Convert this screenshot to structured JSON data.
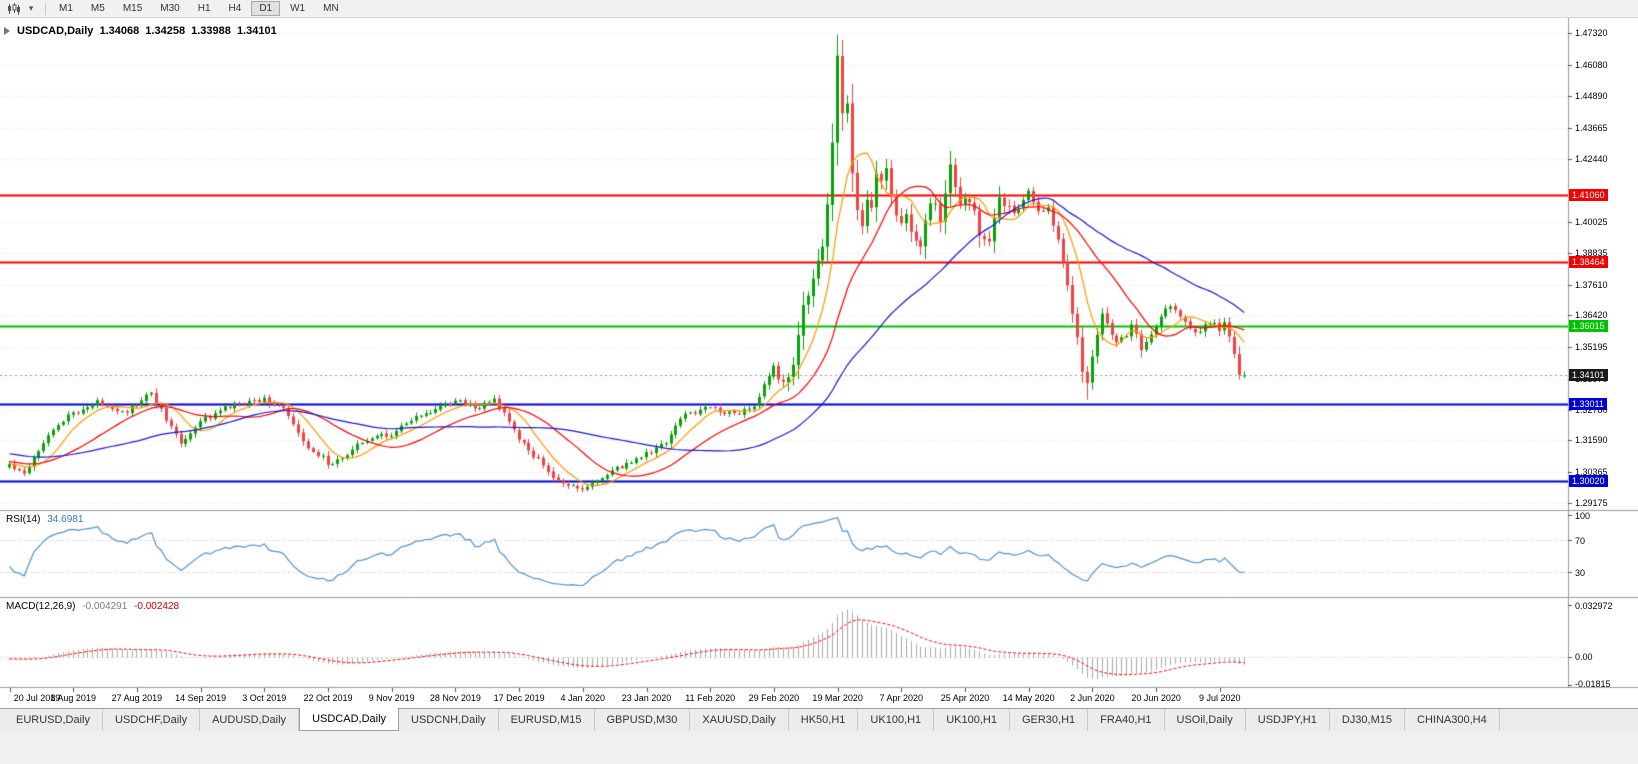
{
  "toolbar": {
    "icons": [
      "chart-type-candlestick-icon",
      "timeframe-dropdown-icon",
      "one-click-trading-icon"
    ],
    "dropdown_glyph": "▾",
    "timeframes": [
      {
        "label": "M1",
        "active": false
      },
      {
        "label": "M5",
        "active": false
      },
      {
        "label": "M15",
        "active": false
      },
      {
        "label": "M30",
        "active": false
      },
      {
        "label": "H1",
        "active": false
      },
      {
        "label": "H4",
        "active": false
      },
      {
        "label": "D1",
        "active": true
      },
      {
        "label": "W1",
        "active": false
      },
      {
        "label": "MN",
        "active": false
      }
    ]
  },
  "chart": {
    "symbol_period": "USDCAD,Daily",
    "open": "1.34068",
    "high": "1.34258",
    "low": "1.33988",
    "close": "1.34101"
  },
  "rsi_panel": {
    "name": "RSI(14)",
    "value": "34.6981",
    "axis_labels": [
      "100",
      "70",
      "30"
    ]
  },
  "macd_panel": {
    "name": "MACD(12,26,9)",
    "macd_value": "-0.004291",
    "signal_value": "-0.002428",
    "axis_labels": [
      "0.032972",
      "0.00",
      "-0.01815"
    ]
  },
  "price_axis": {
    "ticks": [
      "1.47320",
      "1.46080",
      "1.44890",
      "1.43665",
      "1.42440",
      "1.40025",
      "1.38835",
      "1.37610",
      "1.36420",
      "1.35195",
      "1.33970",
      "1.32780",
      "1.31590",
      "1.30365",
      "1.29175"
    ],
    "level_labels": [
      {
        "text": "1.41060",
        "bg": "#f50000"
      },
      {
        "text": "1.38464",
        "bg": "#f50000"
      },
      {
        "text": "1.36015",
        "bg": "#00c300"
      },
      {
        "text": "1.34101",
        "bg": "#1a1a1a"
      },
      {
        "text": "1.33011",
        "bg": "#0000d2"
      },
      {
        "text": "1.30020",
        "bg": "#0000d2"
      }
    ]
  },
  "date_axis": {
    "labels": [
      {
        "text": "20 Jul 2019",
        "bar": 0
      },
      {
        "text": "8 Aug 2019",
        "bar": 13
      },
      {
        "text": "27 Aug 2019",
        "bar": 26
      },
      {
        "text": "14 Sep 2019",
        "bar": 39
      },
      {
        "text": "3 Oct 2019",
        "bar": 52
      },
      {
        "text": "22 Oct 2019",
        "bar": 65
      },
      {
        "text": "9 Nov 2019",
        "bar": 78
      },
      {
        "text": "28 Nov 2019",
        "bar": 91
      },
      {
        "text": "17 Dec 2019",
        "bar": 104
      },
      {
        "text": "4 Jan 2020",
        "bar": 117
      },
      {
        "text": "23 Jan 2020",
        "bar": 130
      },
      {
        "text": "11 Feb 2020",
        "bar": 143
      },
      {
        "text": "29 Feb 2020",
        "bar": 156
      },
      {
        "text": "19 Mar 2020",
        "bar": 169
      },
      {
        "text": "7 Apr 2020",
        "bar": 182
      },
      {
        "text": "25 Apr 2020",
        "bar": 195
      },
      {
        "text": "14 May 2020",
        "bar": 208
      },
      {
        "text": "2 Jun 2020",
        "bar": 221
      },
      {
        "text": "20 Jun 2020",
        "bar": 234
      },
      {
        "text": "9 Jul 2020",
        "bar": 247
      }
    ]
  },
  "tabs": [
    {
      "label": "EURUSD,Daily",
      "active": false
    },
    {
      "label": "USDCHF,Daily",
      "active": false
    },
    {
      "label": "AUDUSD,Daily",
      "active": false
    },
    {
      "label": "USDCAD,Daily",
      "active": true
    },
    {
      "label": "USDCNH,Daily",
      "active": false
    },
    {
      "label": "EURUSD,M15",
      "active": false
    },
    {
      "label": "GBPUSD,M30",
      "active": false
    },
    {
      "label": "XAUUSD,Daily",
      "active": false
    },
    {
      "label": "HK50,H1",
      "active": false
    },
    {
      "label": "UK100,H1",
      "active": false
    },
    {
      "label": "UK100,H1",
      "active": false
    },
    {
      "label": "GER30,H1",
      "active": false
    },
    {
      "label": "FRA40,H1",
      "active": false
    },
    {
      "label": "USOil,Daily",
      "active": false
    },
    {
      "label": "USDJPY,H1",
      "active": false
    },
    {
      "label": "DJ30,M15",
      "active": false
    },
    {
      "label": "CHINA300,H4",
      "active": false
    }
  ],
  "chart_data": {
    "type": "candlestick",
    "symbol": "USDCAD",
    "period": "Daily",
    "ohlc_current": {
      "open": 1.34068,
      "high": 1.34258,
      "low": 1.33988,
      "close": 1.34101
    },
    "ylim": [
      1.2902,
      1.4763
    ],
    "bars_visible": 253,
    "candle_colors": {
      "up": "#0aa00a",
      "down": "#f04343"
    },
    "horizontal_lines": [
      {
        "price": 1.4106,
        "color": "#f50000",
        "width": 2
      },
      {
        "price": 1.38464,
        "color": "#f50000",
        "width": 2
      },
      {
        "price": 1.36015,
        "color": "#00c300",
        "width": 2
      },
      {
        "price": 1.33011,
        "color": "#0000d2",
        "width": 2
      },
      {
        "price": 1.3002,
        "color": "#0000d2",
        "width": 2
      }
    ],
    "current_price_line": 1.34101,
    "moving_averages": [
      {
        "period": 8,
        "method": "sma",
        "color": "#ff9900"
      },
      {
        "period": 20,
        "method": "sma",
        "color": "#ff0000"
      },
      {
        "period": 45,
        "method": "sma",
        "color": "#1a1acd"
      }
    ],
    "close_keypoints": [
      [
        0,
        1.3065
      ],
      [
        3,
        1.3035
      ],
      [
        8,
        1.3185
      ],
      [
        13,
        1.3265
      ],
      [
        18,
        1.3305
      ],
      [
        24,
        1.327
      ],
      [
        29,
        1.334
      ],
      [
        33,
        1.321
      ],
      [
        35,
        1.315
      ],
      [
        40,
        1.3245
      ],
      [
        45,
        1.329
      ],
      [
        52,
        1.332
      ],
      [
        56,
        1.328
      ],
      [
        60,
        1.315
      ],
      [
        66,
        1.306
      ],
      [
        72,
        1.316
      ],
      [
        78,
        1.3185
      ],
      [
        84,
        1.3255
      ],
      [
        91,
        1.331
      ],
      [
        96,
        1.3285
      ],
      [
        99,
        1.332
      ],
      [
        104,
        1.3165
      ],
      [
        108,
        1.308
      ],
      [
        112,
        1.3
      ],
      [
        117,
        1.2965
      ],
      [
        120,
        1.3005
      ],
      [
        126,
        1.307
      ],
      [
        130,
        1.3105
      ],
      [
        134,
        1.315
      ],
      [
        137,
        1.325
      ],
      [
        143,
        1.329
      ],
      [
        148,
        1.326
      ],
      [
        152,
        1.3295
      ],
      [
        156,
        1.344
      ],
      [
        158,
        1.337
      ],
      [
        160,
        1.343
      ],
      [
        162,
        1.369
      ],
      [
        164,
        1.3765
      ],
      [
        166,
        1.3925
      ],
      [
        167,
        1.406
      ],
      [
        168,
        1.429
      ],
      [
        169,
        1.464
      ],
      [
        170,
        1.4435
      ],
      [
        171,
        1.4455
      ],
      [
        172,
        1.4185
      ],
      [
        173,
        1.406
      ],
      [
        174,
        1.3985
      ],
      [
        175,
        1.409
      ],
      [
        176,
        1.406
      ],
      [
        177,
        1.421
      ],
      [
        178,
        1.4145
      ],
      [
        179,
        1.42
      ],
      [
        181,
        1.4015
      ],
      [
        183,
        1.402
      ],
      [
        186,
        1.3885
      ],
      [
        188,
        1.409
      ],
      [
        190,
        1.4015
      ],
      [
        192,
        1.422
      ],
      [
        194,
        1.4065
      ],
      [
        196,
        1.409
      ],
      [
        198,
        1.3965
      ],
      [
        200,
        1.3945
      ],
      [
        202,
        1.408
      ],
      [
        205,
        1.4035
      ],
      [
        208,
        1.4115
      ],
      [
        210,
        1.405
      ],
      [
        212,
        1.406
      ],
      [
        214,
        1.393
      ],
      [
        216,
        1.376
      ],
      [
        218,
        1.356
      ],
      [
        219,
        1.342
      ],
      [
        220,
        1.339
      ],
      [
        221,
        1.348
      ],
      [
        222,
        1.356
      ],
      [
        223,
        1.366
      ],
      [
        225,
        1.3555
      ],
      [
        227,
        1.3545
      ],
      [
        229,
        1.3605
      ],
      [
        231,
        1.3515
      ],
      [
        233,
        1.357
      ],
      [
        235,
        1.3645
      ],
      [
        237,
        1.368
      ],
      [
        239,
        1.365
      ],
      [
        241,
        1.3585
      ],
      [
        243,
        1.357
      ],
      [
        245,
        1.362
      ],
      [
        247,
        1.359
      ],
      [
        248,
        1.3605
      ],
      [
        249,
        1.356
      ],
      [
        250,
        1.348
      ],
      [
        251,
        1.3412
      ],
      [
        252,
        1.34101
      ]
    ],
    "pre_history_keypoints": [
      [
        -60,
        1.323
      ],
      [
        -40,
        1.316
      ],
      [
        -20,
        1.309
      ],
      [
        0,
        1.3065
      ]
    ],
    "spike_high": {
      "bar": 169,
      "price": 1.4668
    },
    "june_low": {
      "bar": 220,
      "price": 1.3316
    },
    "indicators": {
      "rsi": {
        "period": 14,
        "current": 34.6981,
        "levels": [
          70,
          30
        ],
        "range": [
          0,
          105
        ],
        "color": "#4f94cd"
      },
      "macd": {
        "fast": 12,
        "slow": 26,
        "signal": 9,
        "current_macd": -0.004291,
        "current_signal": -0.002428,
        "ylim": [
          -0.01815,
          0.032972
        ],
        "histogram_color": "#a9a9a9",
        "signal_color": "#ff0000"
      }
    }
  }
}
